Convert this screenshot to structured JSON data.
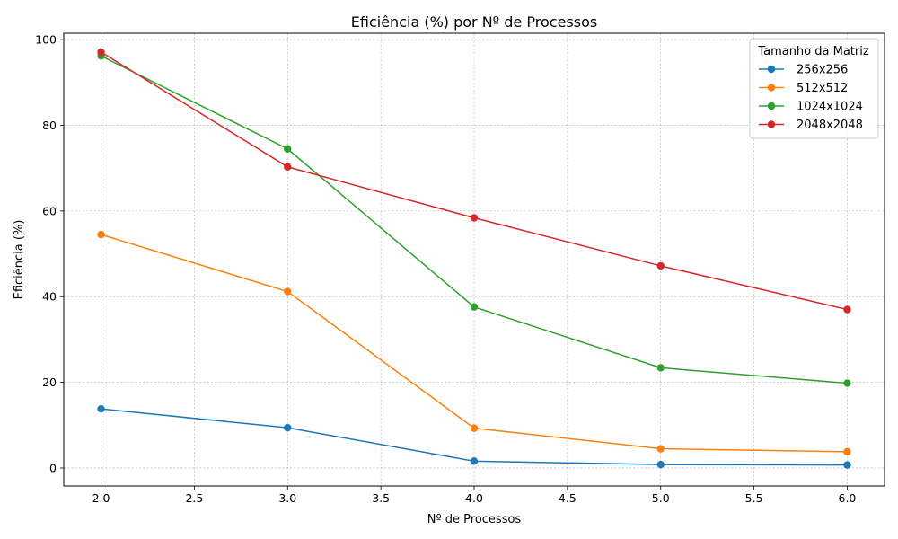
{
  "chart_data": {
    "type": "line",
    "title": "Eficiência (%) por Nº de Processos",
    "xlabel": "Nº de Processos",
    "ylabel": "Eficiência (%)",
    "x": [
      2.0,
      3.0,
      4.0,
      5.0,
      6.0
    ],
    "xlim": [
      1.8,
      6.2
    ],
    "ylim": [
      -4.2,
      101.5
    ],
    "xticks": [
      2.0,
      2.5,
      3.0,
      3.5,
      4.0,
      4.5,
      5.0,
      5.5,
      6.0
    ],
    "xtick_labels": [
      "2.0",
      "2.5",
      "3.0",
      "3.5",
      "4.0",
      "4.5",
      "5.0",
      "5.5",
      "6.0"
    ],
    "yticks": [
      0,
      20,
      40,
      60,
      80,
      100
    ],
    "ytick_labels": [
      "0",
      "20",
      "40",
      "60",
      "80",
      "100"
    ],
    "grid": true,
    "legend": {
      "title": "Tamanho da Matriz",
      "placement": "top-right"
    },
    "series": [
      {
        "name": "256x256",
        "color": "#1f77b4",
        "values": [
          13.8,
          9.4,
          1.6,
          0.8,
          0.7
        ]
      },
      {
        "name": "512x512",
        "color": "#ff7f0e",
        "values": [
          54.5,
          41.2,
          9.3,
          4.5,
          3.8
        ]
      },
      {
        "name": "1024x1024",
        "color": "#2ca02c",
        "values": [
          96.2,
          74.5,
          37.6,
          23.4,
          19.8
        ]
      },
      {
        "name": "2048x2048",
        "color": "#d62728",
        "values": [
          97.1,
          70.3,
          58.4,
          47.2,
          37.0
        ]
      }
    ]
  }
}
